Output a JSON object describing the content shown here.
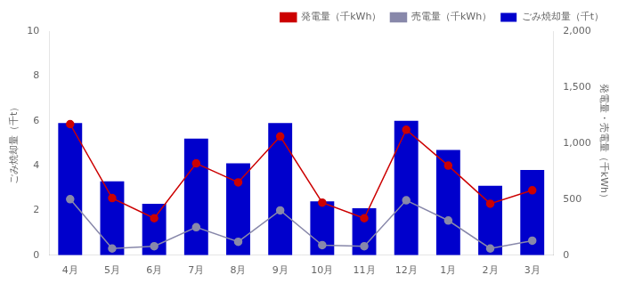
{
  "chart_data": {
    "type": "bar",
    "categories": [
      "4月",
      "5月",
      "6月",
      "7月",
      "8月",
      "9月",
      "10月",
      "11月",
      "12月",
      "1月",
      "2月",
      "3月"
    ],
    "series": [
      {
        "name": "ごみ焼却量（千t）",
        "type": "bar",
        "color": "#0000CC",
        "axis": "y",
        "values": [
          5.9,
          3.3,
          2.3,
          5.2,
          4.1,
          5.9,
          2.4,
          2.1,
          6.0,
          4.7,
          3.1,
          3.8
        ]
      },
      {
        "name": "発電量（千kWh）",
        "type": "line",
        "color": "#CC0000",
        "marker": "circle",
        "line_style": "solid",
        "axis": "y2",
        "values": [
          1170,
          510,
          330,
          820,
          650,
          1060,
          470,
          330,
          1120,
          800,
          460,
          580
        ]
      },
      {
        "name": "売電量（千kWh）",
        "type": "line",
        "color": "#8888AA",
        "marker": "circle",
        "line_style": "solid",
        "axis": "y2",
        "values": [
          500,
          60,
          80,
          250,
          120,
          400,
          90,
          80,
          490,
          310,
          60,
          130
        ]
      }
    ],
    "ylabel": "ごみ焼却量（千t）",
    "y2label": "発電量・売電量（千kWh）",
    "ylim": [
      0,
      10
    ],
    "yticks": [
      0,
      2,
      4,
      6,
      8,
      10
    ],
    "y2lim": [
      0,
      2000
    ],
    "y2ticks": [
      0,
      500,
      {
        "value": 1000,
        "label": "1,000"
      },
      {
        "value": 1500,
        "label": "1,500"
      },
      {
        "value": 2000,
        "label": "2,000"
      }
    ],
    "grid": false,
    "legend": "upper right"
  }
}
